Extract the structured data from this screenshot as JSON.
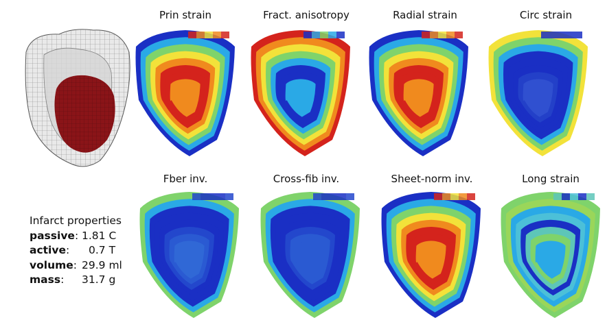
{
  "panels": [
    {
      "title": "Prin strain",
      "map": "prin"
    },
    {
      "title": "Fract. anisotropy",
      "map": "fa"
    },
    {
      "title": "Radial strain",
      "map": "radial"
    },
    {
      "title": "Circ strain",
      "map": "circ"
    },
    {
      "title": "Fber inv.",
      "map": "fiber"
    },
    {
      "title": "Cross-fib inv.",
      "map": "cross"
    },
    {
      "title": "Sheet-norm inv.",
      "map": "sheet"
    },
    {
      "title": "Long strain",
      "map": "long"
    }
  ],
  "infarct": {
    "heading": "Infarct properties",
    "rows": [
      {
        "key": "passive",
        "sep": ":",
        "value": "1.81 C"
      },
      {
        "key": "active",
        "sep": ":",
        "value": "0.7 T"
      },
      {
        "key": "volume",
        "sep": ":",
        "value": "29.9 ml"
      },
      {
        "key": "mass",
        "sep": ":",
        "value": "31.7 g"
      }
    ]
  },
  "colors": {
    "blue": "#1a2fc4",
    "cyan": "#2aa9e6",
    "green": "#7fd36b",
    "yellow": "#f2e23a",
    "orange": "#f08a1e",
    "red": "#d4231c",
    "infarct": "#8a1418",
    "mesh": "#6f6f6f"
  }
}
